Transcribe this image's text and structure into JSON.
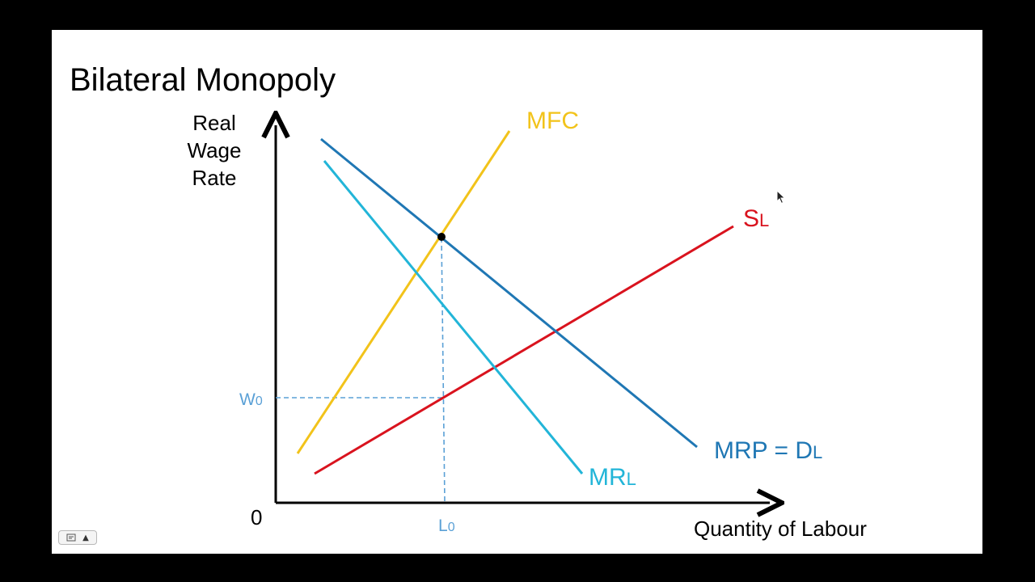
{
  "slide": {
    "title": "Bilateral Monopoly"
  },
  "axes": {
    "y_label_lines": [
      "Real",
      "Wage",
      "Rate"
    ],
    "x_label": "Quantity of Labour",
    "origin_label": "0",
    "w0_label_main": "W",
    "w0_label_sub": "0",
    "l0_label_main": "L",
    "l0_label_sub": "0"
  },
  "curves": {
    "mfc": {
      "label": "MFC",
      "color": "#f2c31a"
    },
    "sl": {
      "label_main": "S",
      "label_sub": "L",
      "color": "#d9131e"
    },
    "mrl": {
      "label_main": "MR",
      "label_sub": "L",
      "color": "#22b5d8"
    },
    "mrp": {
      "label_main": "MRP = D",
      "label_sub": "L",
      "color": "#1f77b4"
    }
  },
  "colors": {
    "axis": "#000000",
    "guide": "#5aa0d6",
    "point": "#000000"
  },
  "controls": {
    "page_icon": "page-icon",
    "up_icon": "▲"
  }
}
